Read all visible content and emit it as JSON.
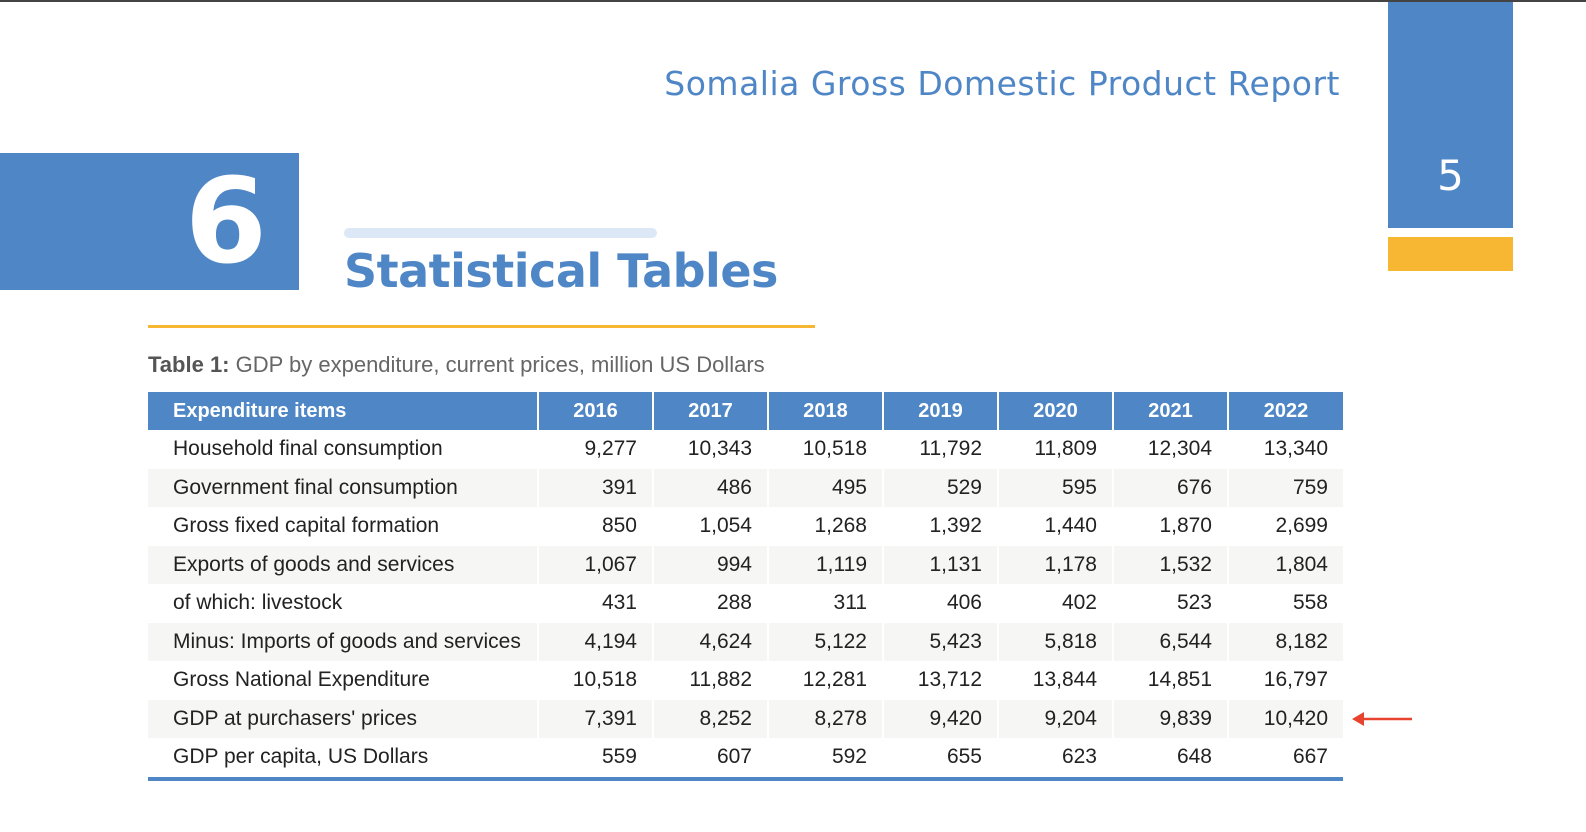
{
  "header": {
    "report_title": "Somalia Gross Domestic Product Report",
    "page_number": "5"
  },
  "chapter": {
    "number": "6",
    "title": "Statistical Tables"
  },
  "table": {
    "caption_label": "Table 1:",
    "caption_text": " GDP by expenditure, current prices, million US Dollars",
    "columns": [
      "Expenditure items",
      "2016",
      "2017",
      "2018",
      "2019",
      "2020",
      "2021",
      "2022"
    ],
    "rows": [
      {
        "label": "Household final consumption",
        "values": [
          "9,277",
          "10,343",
          "10,518",
          "11,792",
          "11,809",
          "12,304",
          "13,340"
        ]
      },
      {
        "label": "Government final consumption",
        "values": [
          "391",
          "486",
          "495",
          "529",
          "595",
          "676",
          "759"
        ]
      },
      {
        "label": "Gross fixed capital formation",
        "values": [
          "850",
          "1,054",
          "1,268",
          "1,392",
          "1,440",
          "1,870",
          "2,699"
        ]
      },
      {
        "label": "Exports of goods and services",
        "values": [
          "1,067",
          "994",
          "1,119",
          "1,131",
          "1,178",
          "1,532",
          "1,804"
        ]
      },
      {
        "label": "of which: livestock",
        "values": [
          "431",
          "288",
          "311",
          "406",
          "402",
          "523",
          "558"
        ]
      },
      {
        "label": "Minus: Imports of goods and services",
        "values": [
          "4,194",
          "4,624",
          "5,122",
          "5,423",
          "5,818",
          "6,544",
          "8,182"
        ]
      },
      {
        "label": "Gross National Expenditure",
        "values": [
          "10,518",
          "11,882",
          "12,281",
          "13,712",
          "13,844",
          "14,851",
          "16,797"
        ]
      },
      {
        "label": "GDP at purchasers' prices",
        "values": [
          "7,391",
          "8,252",
          "8,278",
          "9,420",
          "9,204",
          "9,839",
          "10,420"
        ]
      },
      {
        "label": "GDP per capita, US Dollars",
        "values": [
          "559",
          "607",
          "592",
          "655",
          "623",
          "648",
          "667"
        ]
      }
    ]
  },
  "annotation": {
    "icon": "left-arrow-icon",
    "color": "#e8432e"
  },
  "colors": {
    "brand_blue": "#4f86c6",
    "accent_yellow": "#f7b733"
  }
}
